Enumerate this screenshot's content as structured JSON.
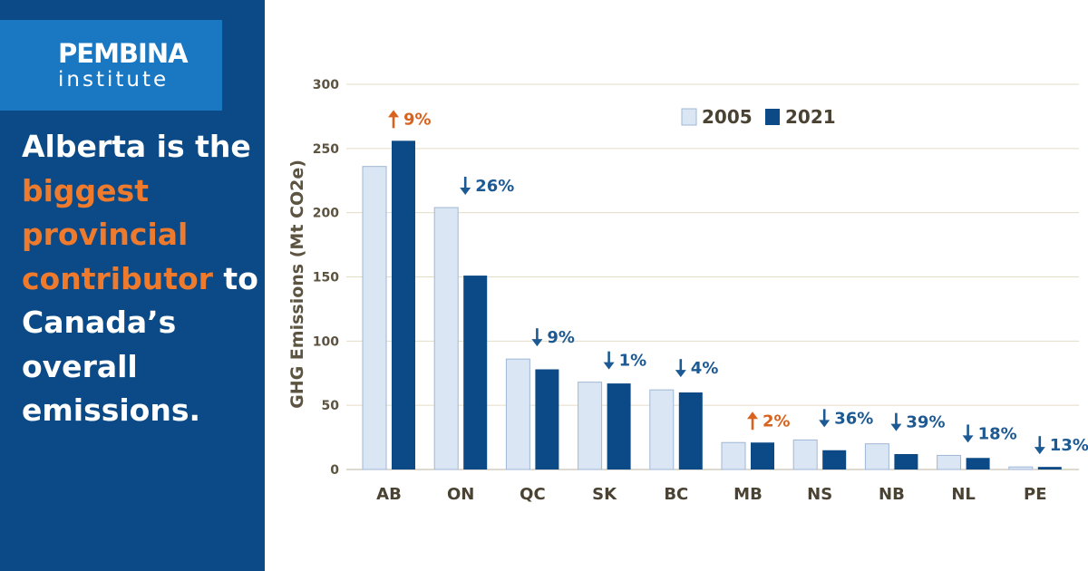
{
  "brand": {
    "line1": "PEMBINA",
    "line2": "institute"
  },
  "headline": {
    "pre": "Alberta is the ",
    "highlight": "biggest provincial contributor",
    "post": " to Canada’s overall emissions."
  },
  "colors": {
    "panel": "#0b4a86",
    "logo_box": "#1a78c2",
    "accent": "#ee7b2d",
    "bar_2005": "#dbe6f4",
    "bar_2021": "#0b4a86",
    "decrease": "#1d5a93",
    "increase": "#d9621e"
  },
  "chart_data": {
    "type": "bar",
    "ylabel": "GHG Emissions (Mt CO2e)",
    "ylim": [
      0,
      300
    ],
    "yticks": [
      0,
      50,
      100,
      150,
      200,
      250,
      300
    ],
    "categories": [
      "AB",
      "ON",
      "QC",
      "SK",
      "BC",
      "MB",
      "NS",
      "NB",
      "NL",
      "PE"
    ],
    "series": [
      {
        "name": "2005",
        "values": [
          236,
          204,
          86,
          68,
          62,
          21,
          23,
          20,
          11,
          2
        ]
      },
      {
        "name": "2021",
        "values": [
          256,
          151,
          78,
          67,
          60,
          21,
          15,
          12,
          9,
          2
        ]
      }
    ],
    "change_labels": [
      "9%",
      "26%",
      "9%",
      "1%",
      "4%",
      "2%",
      "36%",
      "39%",
      "18%",
      "13%"
    ],
    "change_direction": [
      "up",
      "down",
      "down",
      "down",
      "down",
      "up",
      "down",
      "down",
      "down",
      "down"
    ],
    "grid": true,
    "legend": "top-right"
  }
}
